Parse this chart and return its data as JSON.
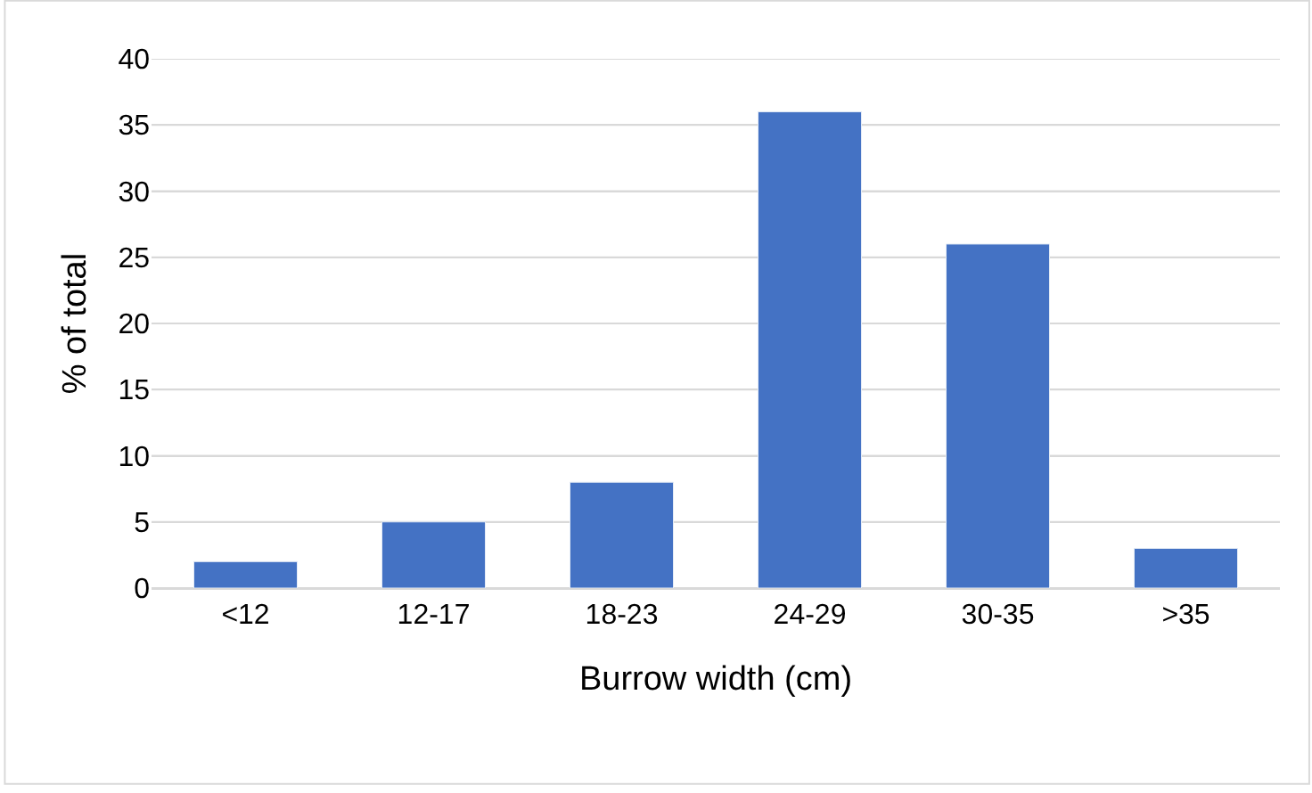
{
  "chart_data": {
    "type": "bar",
    "xlabel": "Burrow width (cm)",
    "ylabel": "% of total",
    "categories": [
      "<12",
      "12-17",
      "18-23",
      "24-29",
      "30-35",
      ">35"
    ],
    "values": [
      2,
      5,
      8,
      36,
      26,
      3
    ],
    "color": "#4472c4",
    "ylim": [
      0,
      40
    ],
    "yticks": [
      0,
      5,
      10,
      15,
      20,
      25,
      30,
      35,
      40
    ],
    "grid": "y"
  }
}
